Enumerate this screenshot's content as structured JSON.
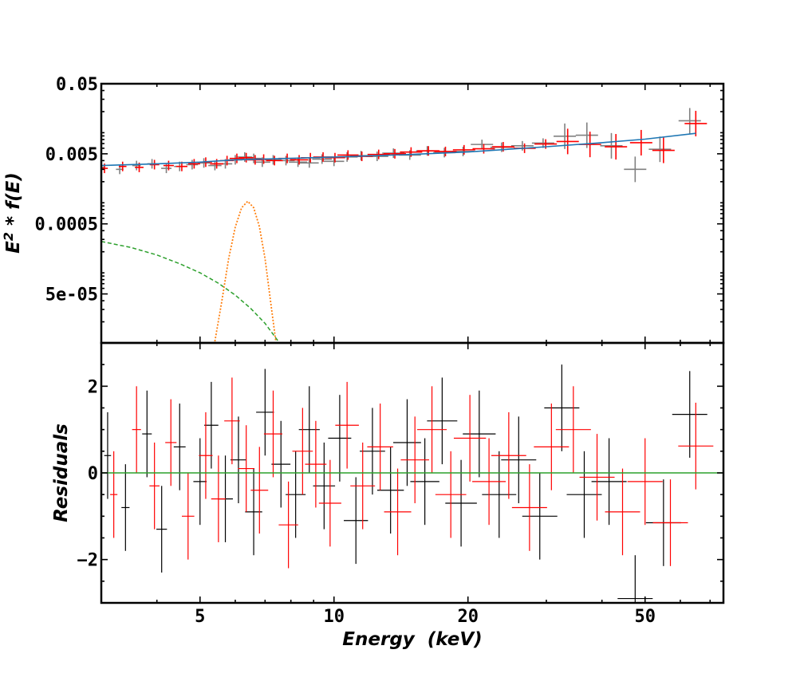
{
  "chart_data": [
    {
      "type": "scatter",
      "panel": "spectrum",
      "title": "",
      "xlabel": "",
      "ylabel": "E² * f(E)",
      "xscale": "log",
      "yscale": "log",
      "xlim": [
        3,
        75
      ],
      "ylim": [
        1e-05,
        0.05
      ],
      "yticks": [
        {
          "value": 0.05,
          "label": "0.05"
        },
        {
          "value": 0.005,
          "label": "0.005"
        },
        {
          "value": 0.0005,
          "label": "0.0005"
        },
        {
          "value": 5e-05,
          "label": "5e-05"
        }
      ],
      "series": [
        {
          "color": "#808080",
          "x": [
            3.0,
            3.3,
            3.6,
            3.9,
            4.2,
            4.5,
            4.8,
            5.1,
            5.4,
            5.7,
            6.0,
            6.3,
            6.6,
            6.9,
            7.3,
            7.8,
            8.3,
            8.8,
            9.4,
            10.0,
            10.7,
            11.5,
            12.5,
            13.6,
            14.8,
            16.2,
            17.7,
            19.5,
            21.5,
            23.8,
            26.5,
            29.5,
            33.0,
            37.0,
            42.0,
            47.5,
            54.0,
            63.0
          ],
          "y": [
            0.0032,
            0.003,
            0.0034,
            0.0036,
            0.0031,
            0.0033,
            0.0035,
            0.0037,
            0.0034,
            0.0036,
            0.0041,
            0.0045,
            0.0043,
            0.0038,
            0.0041,
            0.004,
            0.0038,
            0.0037,
            0.0042,
            0.0039,
            0.0045,
            0.0047,
            0.0046,
            0.0051,
            0.0048,
            0.0055,
            0.0052,
            0.0054,
            0.0068,
            0.0062,
            0.0065,
            0.0071,
            0.0089,
            0.0092,
            0.0065,
            0.003,
            0.0058,
            0.0148
          ]
        },
        {
          "color": "#ff0000",
          "x": [
            3.05,
            3.35,
            3.65,
            3.95,
            4.25,
            4.55,
            4.85,
            5.15,
            5.45,
            5.75,
            6.05,
            6.35,
            6.65,
            6.95,
            7.35,
            7.85,
            8.35,
            8.85,
            9.45,
            10.05,
            10.75,
            11.55,
            12.6,
            13.7,
            14.9,
            16.3,
            17.8,
            19.6,
            21.7,
            24.0,
            26.8,
            29.9,
            33.5,
            37.6,
            43.0,
            49.0,
            55.0,
            65.0
          ],
          "y": [
            0.0031,
            0.0033,
            0.0032,
            0.0035,
            0.0034,
            0.0033,
            0.0036,
            0.0038,
            0.0036,
            0.004,
            0.0043,
            0.0044,
            0.0041,
            0.0042,
            0.004,
            0.0043,
            0.0041,
            0.0044,
            0.0045,
            0.0044,
            0.0048,
            0.0046,
            0.0049,
            0.005,
            0.0053,
            0.0055,
            0.0054,
            0.0057,
            0.0059,
            0.0063,
            0.006,
            0.0069,
            0.0075,
            0.0068,
            0.0063,
            0.0072,
            0.0056,
            0.0135
          ]
        }
      ],
      "model": {
        "total_color": "#1f77b4",
        "x": [
          3,
          4,
          5,
          6,
          8,
          10,
          15,
          20,
          30,
          40,
          50,
          65
        ],
        "y": [
          0.0034,
          0.0036,
          0.0038,
          0.0041,
          0.0043,
          0.0045,
          0.0049,
          0.0053,
          0.0063,
          0.0072,
          0.0081,
          0.0098
        ],
        "continuum_color": "#2ca02c",
        "continuum_x": [
          3.0,
          3.5,
          4.0,
          4.5,
          5.0,
          5.5,
          6.0,
          6.5,
          7.0,
          7.5
        ],
        "continuum_y": [
          0.00028,
          0.00023,
          0.00018,
          0.000135,
          0.0001,
          7.1e-05,
          4.8e-05,
          3.1e-05,
          1.9e-05,
          1.05e-05
        ],
        "line_color": "#ff7f0e",
        "line_x": [
          5.4,
          5.6,
          5.8,
          6.0,
          6.2,
          6.4,
          6.6,
          6.8,
          7.0,
          7.2,
          7.4
        ],
        "line_y": [
          1.05e-05,
          4e-05,
          0.00016,
          0.00045,
          0.00085,
          0.00105,
          0.00085,
          0.00045,
          0.00016,
          4e-05,
          1.05e-05
        ]
      }
    },
    {
      "type": "scatter",
      "panel": "residuals",
      "title": "",
      "xlabel": "Energy  (keV)",
      "ylabel": "Residuals",
      "xscale": "log",
      "xlim": [
        3,
        75
      ],
      "ylim": [
        -3,
        3
      ],
      "xticks": [
        5,
        10,
        20,
        50
      ],
      "yticks": [
        -2,
        0,
        2
      ],
      "ytick_labels": [
        "−2",
        "0",
        "2"
      ],
      "zero_line_color": "#2ca02c",
      "series": [
        {
          "color": "#000000",
          "x": [
            3.1,
            3.4,
            3.8,
            4.1,
            4.5,
            5.0,
            5.3,
            5.7,
            6.1,
            6.6,
            7.0,
            7.6,
            8.2,
            8.8,
            9.5,
            10.3,
            11.2,
            12.2,
            13.4,
            14.6,
            16.0,
            17.5,
            19.3,
            21.2,
            23.5,
            26.0,
            29.0,
            32.5,
            36.5,
            41.5,
            47.5,
            55.0,
            63.0
          ],
          "y": [
            0.4,
            -0.8,
            0.9,
            -1.3,
            0.6,
            -0.2,
            1.1,
            -0.6,
            0.3,
            -0.9,
            1.4,
            0.2,
            -0.5,
            1.0,
            -0.3,
            0.8,
            -1.1,
            0.5,
            -0.4,
            0.7,
            -0.2,
            1.2,
            -0.7,
            0.9,
            -0.5,
            0.3,
            -1.0,
            1.5,
            -0.5,
            -0.2,
            -2.9,
            -1.15,
            1.35
          ]
        },
        {
          "color": "#ff0000",
          "x": [
            3.2,
            3.6,
            3.95,
            4.3,
            4.7,
            5.15,
            5.5,
            5.9,
            6.35,
            6.8,
            7.3,
            7.9,
            8.5,
            9.1,
            9.8,
            10.7,
            11.6,
            12.7,
            13.9,
            15.2,
            16.6,
            18.3,
            20.2,
            22.3,
            24.7,
            27.5,
            30.8,
            34.5,
            39.0,
            44.5,
            50.0,
            57.0,
            65.0
          ],
          "y": [
            -0.5,
            1.0,
            -0.3,
            0.7,
            -1.0,
            0.4,
            -0.6,
            1.2,
            0.1,
            -0.4,
            0.9,
            -1.2,
            0.5,
            0.2,
            -0.7,
            1.1,
            -0.3,
            0.6,
            -0.9,
            0.3,
            1.0,
            -0.5,
            0.8,
            -0.2,
            0.4,
            -0.8,
            0.6,
            1.0,
            -0.1,
            -0.9,
            -0.2,
            -1.15,
            0.62
          ]
        }
      ]
    }
  ]
}
